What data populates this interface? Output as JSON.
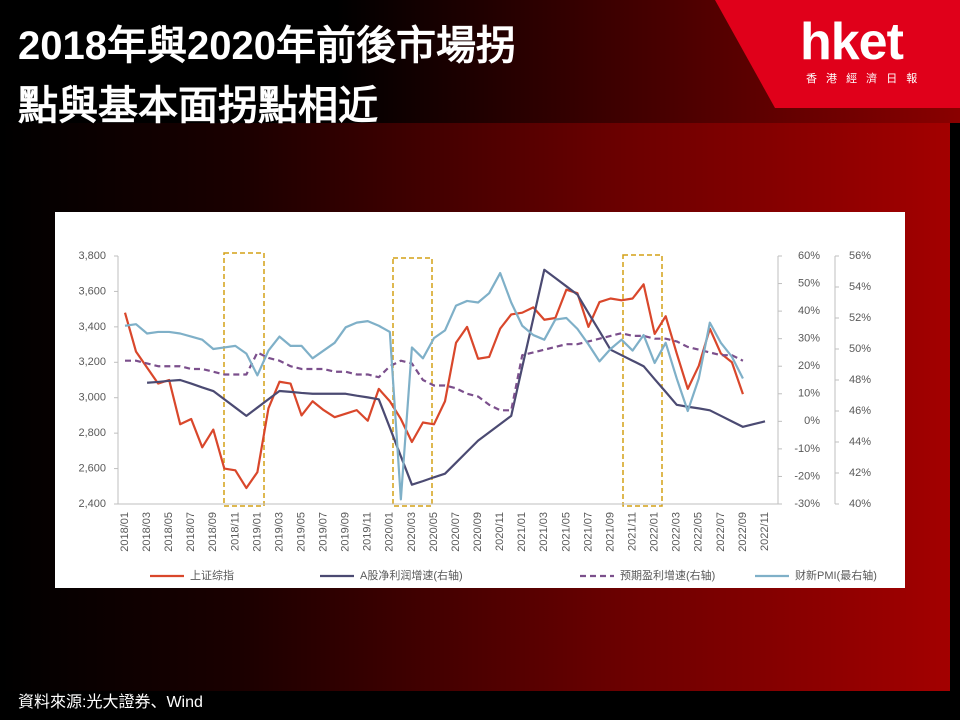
{
  "header": {
    "title_lines": [
      "2018年與2020年前後市場拐",
      "點與基本面拐點相近"
    ]
  },
  "logo": {
    "name": "hket",
    "subtitle": "香 港 經 濟 日 報"
  },
  "source": "資料來源:光大證券、Wind",
  "chart_data": {
    "type": "line",
    "categories": [
      "2018/01",
      null,
      "2018/03",
      null,
      "2018/05",
      null,
      "2018/07",
      null,
      "2018/09",
      null,
      "2018/11",
      null,
      "2019/01",
      null,
      "2019/03",
      null,
      "2019/05",
      null,
      "2019/07",
      null,
      "2019/09",
      null,
      "2019/11",
      null,
      "2020/01",
      null,
      "2020/03",
      null,
      "2020/05",
      null,
      "2020/07",
      null,
      "2020/09",
      null,
      "2020/11",
      null,
      "2021/01",
      null,
      "2021/03",
      null,
      "2021/05",
      null,
      "2021/07",
      null,
      "2021/09",
      null,
      "2021/11",
      null,
      "2022/01",
      null,
      "2022/03",
      null,
      "2022/05",
      null,
      "2022/07",
      null,
      "2022/09",
      null,
      "2022/11"
    ],
    "ylim": [
      2400,
      3800
    ],
    "yticks": [
      {
        "value": 2400,
        "label": "2,400"
      },
      {
        "value": 2600,
        "label": "2,600"
      },
      {
        "value": 2800,
        "label": "2,800"
      },
      {
        "value": 3000,
        "label": "3,000"
      },
      {
        "value": 3200,
        "label": "3,200"
      },
      {
        "value": 3400,
        "label": "3,400"
      },
      {
        "value": 3600,
        "label": "3,600"
      },
      {
        "value": 3800,
        "label": "3,800"
      }
    ],
    "y2lim": [
      -30,
      60
    ],
    "y2ticks": [
      {
        "value": -30,
        "label": "-30%"
      },
      {
        "value": -20,
        "label": "-20%"
      },
      {
        "value": -10,
        "label": "-10%"
      },
      {
        "value": 0,
        "label": "0%"
      },
      {
        "value": 10,
        "label": "10%"
      },
      {
        "value": 20,
        "label": "20%"
      },
      {
        "value": 30,
        "label": "30%"
      },
      {
        "value": 40,
        "label": "40%"
      },
      {
        "value": 50,
        "label": "50%"
      },
      {
        "value": 60,
        "label": "60%"
      }
    ],
    "y3lim": [
      40,
      56
    ],
    "y3ticks": [
      {
        "value": 40,
        "label": "40%"
      },
      {
        "value": 42,
        "label": "42%"
      },
      {
        "value": 44,
        "label": "44%"
      },
      {
        "value": 46,
        "label": "46%"
      },
      {
        "value": 48,
        "label": "48%"
      },
      {
        "value": 50,
        "label": "50%"
      },
      {
        "value": 52,
        "label": "52%"
      },
      {
        "value": 54,
        "label": "54%"
      },
      {
        "value": 56,
        "label": "56%"
      }
    ],
    "legend": "bottom",
    "series": [
      {
        "name": "上证综指",
        "color": "#d9472b",
        "axis": "y",
        "dashed": false,
        "values": [
          3480,
          3260,
          3170,
          3080,
          3100,
          2850,
          2880,
          2720,
          2820,
          2600,
          2590,
          2490,
          2580,
          2940,
          3090,
          3080,
          2900,
          2980,
          2930,
          2890,
          2910,
          2930,
          2870,
          3050,
          2980,
          2880,
          2750,
          2860,
          2850,
          2980,
          3310,
          3400,
          3220,
          3230,
          3390,
          3470,
          3480,
          3510,
          3440,
          3450,
          3610,
          3590,
          3400,
          3540,
          3560,
          3550,
          3560,
          3640,
          3360,
          3460,
          3250,
          3050,
          3180,
          3390,
          3250,
          3200,
          3020,
          null,
          null
        ]
      },
      {
        "name": "A股净利润增速(右轴)",
        "color": "#4b4a72",
        "axis": "y2",
        "dashed": false,
        "values": [
          null,
          null,
          14,
          14.3,
          14.7,
          15,
          13.7,
          12.3,
          11,
          8,
          5,
          2,
          5,
          8,
          11,
          10.7,
          10.3,
          10,
          10,
          10,
          10,
          9.3,
          8.7,
          8,
          -2.3,
          -12.7,
          -23,
          -21.7,
          -20.3,
          -19,
          -15,
          -11,
          -7,
          -4,
          -1,
          2,
          19.7,
          37.3,
          55,
          52,
          49,
          46,
          39.3,
          32.7,
          26,
          24,
          22,
          20,
          15.3,
          10.7,
          6,
          5.3,
          4.7,
          4,
          2,
          0,
          -2,
          -1,
          0
        ]
      },
      {
        "name": "预期盈利增速(右轴)",
        "color": "#7b4f8c",
        "axis": "y2",
        "dashed": true,
        "values": [
          22,
          22,
          21,
          20,
          20,
          20,
          19,
          19,
          18,
          17,
          17,
          17,
          25,
          23,
          22,
          20,
          19,
          19,
          19,
          18,
          18,
          17,
          17,
          16,
          20,
          22,
          21,
          15,
          13,
          13,
          12,
          10,
          9,
          6,
          4,
          4,
          24,
          25,
          26,
          27,
          28,
          28,
          29,
          30,
          31,
          32,
          31,
          31,
          30,
          30,
          29,
          27,
          26,
          25,
          24,
          24,
          22,
          null,
          null
        ]
      },
      {
        "name": "财新PMI(最右轴)",
        "color": "#7fb0c8",
        "axis": "y3",
        "dashed": false,
        "values": [
          51.5,
          51.6,
          51.0,
          51.1,
          51.1,
          51.0,
          50.8,
          50.6,
          50.0,
          50.1,
          50.2,
          49.7,
          48.3,
          49.9,
          50.8,
          50.2,
          50.2,
          49.4,
          49.9,
          50.4,
          51.4,
          51.7,
          51.8,
          51.5,
          51.1,
          40.3,
          50.1,
          49.4,
          50.7,
          51.2,
          52.8,
          53.1,
          53.0,
          53.6,
          54.9,
          53.0,
          51.5,
          50.9,
          50.6,
          51.9,
          52.0,
          51.3,
          50.3,
          49.2,
          50.0,
          50.6,
          49.9,
          50.9,
          49.1,
          50.4,
          48.1,
          46.0,
          48.1,
          51.7,
          50.4,
          49.5,
          48.1,
          null,
          null
        ]
      }
    ]
  }
}
